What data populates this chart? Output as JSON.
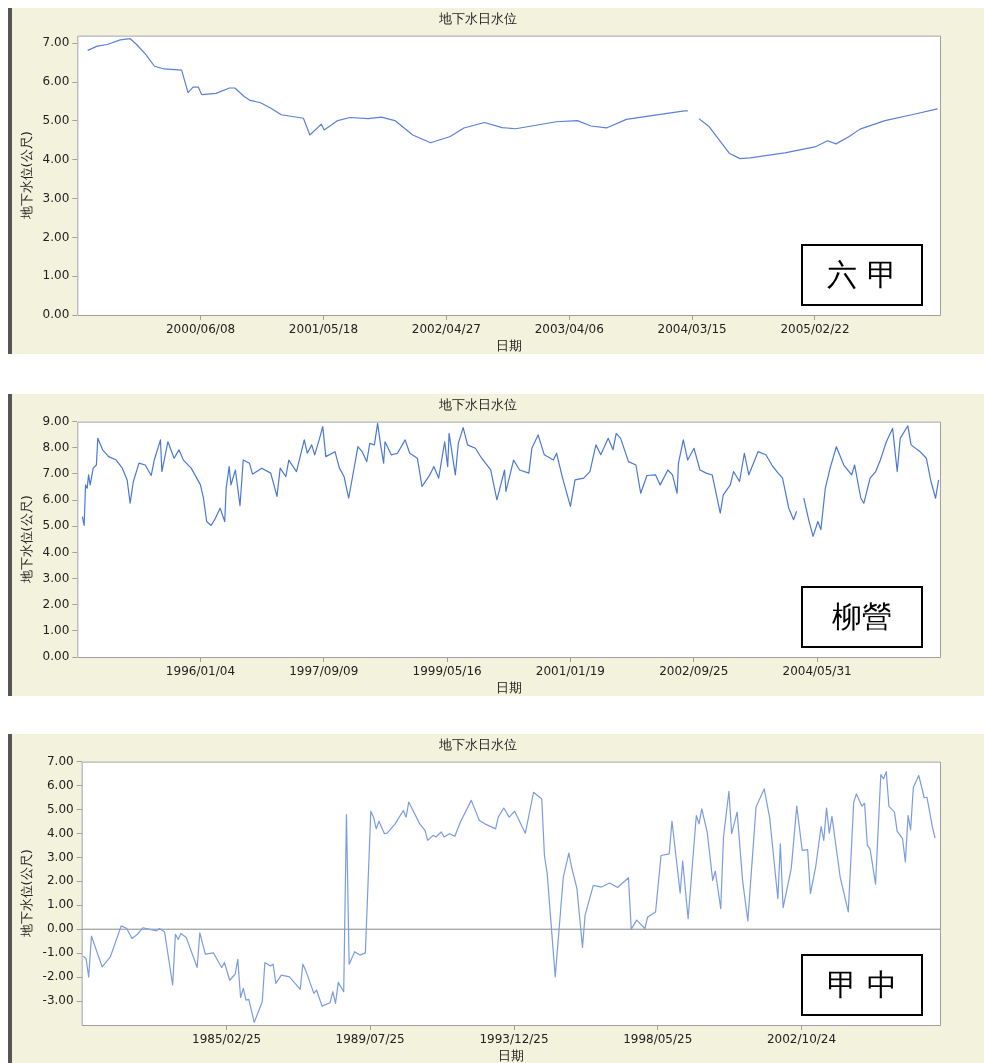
{
  "chart_data": [
    {
      "type": "line",
      "title": "地下水日水位",
      "xlabel": "日期",
      "ylabel": "地下水位(公尺)",
      "annotations": [
        "六 甲"
      ],
      "xlim": [
        "1999-06-29",
        "2006-02-07"
      ],
      "ylim": [
        0,
        7.2
      ],
      "xticks": [
        {
          "value": "2000-06-08",
          "label": "2000/06/08"
        },
        {
          "value": "2001-05-18",
          "label": "2001/05/18"
        },
        {
          "value": "2002-04-27",
          "label": "2002/04/27"
        },
        {
          "value": "2003-04-06",
          "label": "2003/04/06"
        },
        {
          "value": "2004-03-15",
          "label": "2004/03/15"
        },
        {
          "value": "2005-02-22",
          "label": "2005/02/22"
        }
      ],
      "yticks": [
        {
          "value": 0,
          "label": "0.00"
        },
        {
          "value": 1,
          "label": "1.00"
        },
        {
          "value": 2,
          "label": "2.00"
        },
        {
          "value": 3,
          "label": "3.00"
        },
        {
          "value": 4,
          "label": "4.00"
        },
        {
          "value": 5,
          "label": "5.00"
        },
        {
          "value": 6,
          "label": "6.00"
        },
        {
          "value": 7,
          "label": "7.00"
        }
      ],
      "series": [
        {
          "color": "#5b80d8",
          "x": [
            "1999-07-28",
            "1999-08-24",
            "1999-09-21",
            "1999-10-27",
            "1999-11-24",
            "1999-12-12",
            "2000-01-07",
            "2000-01-31",
            "2000-02-27",
            "2000-04-16",
            "2000-05-04",
            "2000-05-18",
            "2000-06-02",
            "2000-06-11",
            "2000-07-21",
            "2000-08-28",
            "2000-09-12",
            "2000-10-08",
            "2000-10-25",
            "2000-11-23",
            "2000-12-22",
            "2001-01-20",
            "2001-03-23",
            "2001-04-10",
            "2001-05-12",
            "2001-05-20",
            "2001-06-27",
            "2001-07-31",
            "2001-09-20",
            "2001-10-27",
            "2001-12-04",
            "2002-01-23",
            "2002-03-14",
            "2002-05-08",
            "2002-06-15",
            "2002-08-12",
            "2002-09-30",
            "2002-11-07",
            "2003-03-01",
            "2003-04-29",
            "2003-06-06",
            "2003-07-19",
            "2003-09-13",
            "2003-12-17",
            "2004-02-23",
            "2004-03-03",
            "2004-03-18",
            "2004-04-03",
            "2004-05-01",
            "2004-06-28",
            "2004-07-27",
            "2004-08-25",
            "2004-11-30",
            "2005-02-25",
            "2005-03-29",
            "2005-04-22",
            "2005-05-29",
            "2005-06-28",
            "2005-09-06",
            "2005-11-20",
            "2006-01-31"
          ],
          "values": [
            6.82,
            6.93,
            6.97,
            7.09,
            7.12,
            6.97,
            6.71,
            6.41,
            6.34,
            6.31,
            5.73,
            5.87,
            5.87,
            5.68,
            5.71,
            5.85,
            5.85,
            5.63,
            5.53,
            5.47,
            5.33,
            5.16,
            5.07,
            4.64,
            4.92,
            4.77,
            5.01,
            5.09,
            5.06,
            5.1,
            5.01,
            4.64,
            4.44,
            4.6,
            4.82,
            4.96,
            4.83,
            4.8,
            4.98,
            5.01,
            4.87,
            4.82,
            5.04,
            5.17,
            5.26,
            5.26,
            null,
            5.06,
            4.86,
            4.16,
            4.03,
            4.05,
            4.18,
            4.34,
            4.49,
            4.41,
            4.6,
            4.79,
            5.01,
            5.16,
            5.31
          ]
        }
      ]
    },
    {
      "type": "line",
      "title": "地下水日水位",
      "xlabel": "日期",
      "ylabel": "地下水位(公尺)",
      "annotations": [
        "柳營"
      ],
      "xlim": [
        "1994-05-01",
        "2006-02-02"
      ],
      "ylim": [
        0,
        9
      ],
      "xticks": [
        {
          "value": "1996-01-04",
          "label": "1996/01/04"
        },
        {
          "value": "1997-09-09",
          "label": "1997/09/09"
        },
        {
          "value": "1999-05-16",
          "label": "1999/05/16"
        },
        {
          "value": "2001-01-19",
          "label": "2001/01/19"
        },
        {
          "value": "2002-09-25",
          "label": "2002/09/25"
        },
        {
          "value": "2004-05-31",
          "label": "2004/05/31"
        }
      ],
      "yticks": [
        {
          "value": 0,
          "label": "0.00"
        },
        {
          "value": 1,
          "label": "1.00"
        },
        {
          "value": 2,
          "label": "2.00"
        },
        {
          "value": 3,
          "label": "3.00"
        },
        {
          "value": 4,
          "label": "4.00"
        },
        {
          "value": 5,
          "label": "5.00"
        },
        {
          "value": 6,
          "label": "6.00"
        },
        {
          "value": 7,
          "label": "7.00"
        },
        {
          "value": 8,
          "label": "8.00"
        },
        {
          "value": 9,
          "label": "9.00"
        }
      ],
      "series": [
        {
          "color": "#4a78d8",
          "x": [
            "1994-05-26",
            "1994-06-04",
            "1994-06-11",
            "1994-06-19",
            "1994-06-26",
            "1994-07-04",
            "1994-07-19",
            "1994-08-04",
            "1994-08-11",
            "1994-09-04",
            "1994-10-04",
            "1994-11-11",
            "1994-12-11",
            "1995-01-04",
            "1995-01-19",
            "1995-02-04",
            "1995-03-04",
            "1995-04-04",
            "1995-05-04",
            "1995-05-19",
            "1995-06-19",
            "1995-06-26",
            "1995-07-26",
            "1995-08-26",
            "1995-09-19",
            "1995-10-11",
            "1995-11-19",
            "1996-01-04",
            "1996-01-19",
            "1996-02-04",
            "1996-02-26",
            "1996-03-19",
            "1996-04-11",
            "1996-05-04",
            "1996-05-11",
            "1996-05-26",
            "1996-06-04",
            "1996-06-26",
            "1996-07-19",
            "1996-08-04",
            "1996-09-04",
            "1996-09-19",
            "1996-11-04",
            "1996-12-19",
            "1997-01-19",
            "1997-02-04",
            "1997-03-04",
            "1997-03-19",
            "1997-04-26",
            "1997-06-04",
            "1997-06-19",
            "1997-07-11",
            "1997-07-26",
            "1997-08-19",
            "1997-09-04",
            "1997-09-19",
            "1997-11-04",
            "1997-11-26",
            "1997-12-19",
            "1998-01-11",
            "1998-01-26",
            "1998-02-26",
            "1998-03-19",
            "1998-04-11",
            "1998-04-26",
            "1998-05-19",
            "1998-06-04",
            "1998-06-19",
            "1998-07-04",
            "1998-07-11",
            "1998-08-11",
            "1998-09-11",
            "1998-10-19",
            "1998-11-11",
            "1998-12-19",
            "1999-01-11",
            "1999-02-19",
            "1999-03-11",
            "1999-04-04",
            "1999-05-04",
            "1999-05-19",
            "1999-05-26",
            "1999-06-26",
            "1999-07-11",
            "1999-08-04",
            "1999-08-26",
            "1999-10-04",
            "1999-11-04",
            "1999-12-19",
            "2000-01-19",
            "2000-02-26",
            "2000-03-04",
            "2000-04-11",
            "2000-05-11",
            "2000-06-26",
            "2000-07-11",
            "2000-08-11",
            "2000-09-11",
            "2000-10-26",
            "2000-11-11",
            "2000-12-11",
            "2001-01-19",
            "2001-02-11",
            "2001-03-26",
            "2001-04-26",
            "2001-05-26",
            "2001-06-19",
            "2001-07-26",
            "2001-08-19",
            "2001-09-04",
            "2001-09-26",
            "2001-11-04",
            "2001-12-11",
            "2002-01-04",
            "2002-02-04",
            "2002-03-19",
            "2002-04-11",
            "2002-05-19",
            "2002-06-11",
            "2002-07-04",
            "2002-07-11",
            "2002-08-04",
            "2002-08-26",
            "2002-09-26",
            "2002-10-26",
            "2002-11-26",
            "2002-12-26",
            "2003-02-04",
            "2003-02-19",
            "2003-03-26",
            "2003-04-11",
            "2003-05-11",
            "2003-06-04",
            "2003-06-26",
            "2003-08-11",
            "2003-09-19",
            "2003-10-19",
            "2003-11-19",
            "2003-12-11",
            "2004-01-11",
            "2004-02-04",
            "2004-02-19",
            "2004-03-04",
            "2004-03-26",
            "2004-04-19",
            "2004-05-11",
            "2004-06-04",
            "2004-06-19",
            "2004-07-11",
            "2004-08-04",
            "2004-09-04",
            "2004-10-11",
            "2004-11-19",
            "2004-12-04",
            "2005-01-04",
            "2005-01-19",
            "2005-02-19",
            "2005-03-19",
            "2005-04-11",
            "2005-05-11",
            "2005-06-11",
            "2005-07-04",
            "2005-07-19",
            "2005-08-26",
            "2005-09-11",
            "2005-10-26",
            "2005-11-26",
            "2005-12-19",
            "2006-01-11",
            "2006-01-26"
          ],
          "values": [
            5.37,
            5.03,
            6.58,
            6.45,
            6.96,
            6.58,
            7.22,
            7.34,
            8.36,
            7.92,
            7.66,
            7.53,
            7.22,
            6.77,
            5.88,
            6.71,
            7.41,
            7.34,
            6.94,
            7.53,
            8.3,
            7.09,
            8.23,
            7.6,
            7.92,
            7.53,
            7.22,
            6.58,
            6.07,
            5.18,
            5.03,
            5.31,
            5.69,
            5.18,
            6.45,
            7.28,
            6.58,
            7.15,
            5.79,
            7.53,
            7.41,
            6.99,
            7.22,
            7.03,
            6.14,
            7.22,
            6.9,
            7.53,
            7.09,
            8.3,
            7.79,
            8.11,
            7.73,
            8.36,
            8.81,
            7.66,
            7.85,
            7.22,
            6.9,
            6.07,
            6.71,
            8.04,
            7.85,
            7.47,
            8.17,
            8.11,
            8.93,
            8.11,
            7.41,
            8.23,
            7.73,
            7.79,
            8.3,
            7.79,
            7.6,
            6.52,
            6.96,
            7.28,
            6.84,
            8.23,
            7.28,
            8.55,
            6.96,
            8.17,
            8.77,
            8.11,
            7.98,
            7.6,
            7.15,
            6.01,
            7.15,
            6.33,
            7.53,
            7.15,
            7.03,
            7.98,
            8.49,
            7.73,
            7.53,
            7.79,
            6.84,
            5.76,
            6.77,
            6.84,
            7.09,
            8.11,
            7.73,
            8.36,
            7.92,
            8.55,
            8.36,
            7.47,
            7.34,
            6.26,
            6.94,
            6.96,
            6.58,
            7.15,
            6.96,
            6.26,
            7.41,
            8.3,
            7.53,
            7.98,
            7.15,
            7.03,
            6.96,
            5.5,
            6.2,
            6.58,
            7.09,
            6.71,
            7.79,
            6.96,
            7.85,
            7.73,
            7.34,
            7.03,
            6.84,
            5.69,
            5.25,
            5.57,
            null,
            6.07,
            5.25,
            4.61,
            5.18,
            4.87,
            6.45,
            7.22,
            8.04,
            7.34,
            6.96,
            7.34,
            6.07,
            5.88,
            6.84,
            7.09,
            7.53,
            8.23,
            8.74,
            7.09,
            8.36,
            8.84,
            8.11,
            7.85,
            7.6,
            6.71,
            6.07,
            6.77
          ]
        }
      ]
    },
    {
      "type": "line",
      "title": "地下水日水位",
      "xlabel": "日期",
      "ylabel": "地下水位(公尺)",
      "annotations": [
        "甲 中"
      ],
      "xlim": [
        "1980-09-13",
        "2007-01-25"
      ],
      "ylim": [
        -4,
        7
      ],
      "xticks": [
        {
          "value": "1985-02-25",
          "label": "1985/02/25"
        },
        {
          "value": "1989-07-25",
          "label": "1989/07/25"
        },
        {
          "value": "1993-12-25",
          "label": "1993/12/25"
        },
        {
          "value": "1998-05-25",
          "label": "1998/05/25"
        },
        {
          "value": "2002-10-24",
          "label": "2002/10/24"
        }
      ],
      "yticks": [
        {
          "value": -3,
          "label": "-3.00"
        },
        {
          "value": -2,
          "label": "-2.00"
        },
        {
          "value": -1,
          "label": "-1.00"
        },
        {
          "value": 0,
          "label": "0.00"
        },
        {
          "value": 1,
          "label": "1.00"
        },
        {
          "value": 2,
          "label": "2.00"
        },
        {
          "value": 3,
          "label": "3.00"
        },
        {
          "value": 4,
          "label": "4.00"
        },
        {
          "value": 5,
          "label": "5.00"
        },
        {
          "value": 6,
          "label": "6.00"
        },
        {
          "value": 7,
          "label": "7.00"
        }
      ],
      "ref_lines": [
        {
          "axis": "y",
          "value": 0,
          "color": "#888888"
        }
      ],
      "series": [
        {
          "color": "#7b9ce2",
          "x": [
            "1980-10",
            "1980-11",
            "1980-12",
            "1981-01",
            "1981-05",
            "1981-08",
            "1981-12",
            "1982-02",
            "1982-04",
            "1982-06",
            "1982-08",
            "1983-01",
            "1983-02",
            "1983-04",
            "1983-07",
            "1983-08",
            "1983-09",
            "1983-10",
            "1983-12",
            "1984-04",
            "1984-05",
            "1984-07",
            "1984-10",
            "1985-01",
            "1985-02",
            "1985-04",
            "1985-06",
            "1985-07",
            "1985-08",
            "1985-09",
            "1985-10",
            "1985-11",
            "1986-01",
            "1986-04",
            "1986-05",
            "1986-07",
            "1986-08",
            "1986-09",
            "1986-11",
            "1987-02",
            "1987-06",
            "1987-07",
            "1987-08",
            "1987-11",
            "1987-12",
            "1988-02",
            "1988-05",
            "1988-06",
            "1988-07",
            "1988-08",
            "1988-10",
            "1988-11",
            "1988-12",
            "1989-02",
            "1989-04",
            "1989-06",
            "1989-08",
            "1989-09",
            "1989-10",
            "1989-11",
            "1990-01",
            "1990-02",
            "1990-05",
            "1990-08",
            "1990-09",
            "1990-10",
            "1991-02",
            "1991-04",
            "1991-05",
            "1991-07",
            "1991-08",
            "1991-10",
            "1991-11",
            "1992-01",
            "1992-03",
            "1992-05",
            "1992-09",
            "1992-12",
            "1993-02",
            "1993-06",
            "1993-07",
            "1993-09",
            "1993-11",
            "1994-01",
            "1994-05",
            "1994-08",
            "1994-11",
            "1994-12",
            "1995-01",
            "1995-04",
            "1995-07",
            "1995-09",
            "1995-10",
            "1995-12",
            "1996-02",
            "1996-03",
            "1996-06",
            "1996-09",
            "1996-12",
            "1997-03",
            "1997-07",
            "1997-08",
            "1997-10",
            "1998-01",
            "1998-02",
            "1998-05",
            "1998-07",
            "1998-10",
            "1998-11",
            "1999-02",
            "1999-03",
            "1999-05",
            "1999-08",
            "1999-09",
            "1999-10",
            "1999-12",
            "2000-02",
            "2000-03",
            "2000-05",
            "2000-06",
            "2000-08",
            "2000-09",
            "2000-11",
            "2001-01",
            "2001-03",
            "2001-06",
            "2001-09",
            "2001-11",
            "2002-02",
            "2002-03",
            "2002-04",
            "2002-07",
            "2002-09",
            "2002-11",
            "2003-01",
            "2003-02",
            "2003-04",
            "2003-06",
            "2003-07",
            "2003-08",
            "2003-09",
            "2003-10",
            "2004-01",
            "2004-04",
            "2004-06",
            "2004-07",
            "2004-09",
            "2004-10",
            "2004-11",
            "2004-12",
            "2005-02",
            "2005-04",
            "2005-05",
            "2005-06",
            "2005-07",
            "2005-09",
            "2005-10",
            "2005-12",
            "2006-01",
            "2006-02",
            "2006-03",
            "2006-04",
            "2006-06",
            "2006-08",
            "2006-09",
            "2006-11",
            "2006-12"
          ],
          "values": [
            -1.13,
            -1.22,
            -1.99,
            -0.29,
            -1.57,
            -1.15,
            0.14,
            0.03,
            -0.39,
            -0.21,
            0.06,
            -0.07,
            0.03,
            -0.11,
            -2.33,
            -0.21,
            -0.43,
            -0.18,
            -0.35,
            -1.6,
            -0.15,
            -1.04,
            -0.99,
            -1.6,
            -1.39,
            -2.13,
            -1.88,
            -1.26,
            -2.85,
            -2.47,
            -2.96,
            -2.93,
            -3.89,
            -3.03,
            -1.39,
            -1.54,
            -1.46,
            -2.26,
            -1.92,
            -1.99,
            -2.51,
            -1.46,
            -1.71,
            -2.68,
            -2.54,
            -3.21,
            -3.07,
            -2.61,
            -3.1,
            -2.22,
            -2.61,
            4.79,
            -1.46,
            -0.94,
            -1.08,
            -0.99,
            4.93,
            4.68,
            4.19,
            4.51,
            3.99,
            4.01,
            4.4,
            4.96,
            4.68,
            5.31,
            4.4,
            4.13,
            3.71,
            3.92,
            3.85,
            4.06,
            3.85,
            3.99,
            3.88,
            4.47,
            5.38,
            4.54,
            4.4,
            4.19,
            4.68,
            5.06,
            4.68,
            4.93,
            4.01,
            5.72,
            5.44,
            3.08,
            2.32,
            -1.99,
            2.18,
            3.18,
            2.6,
            1.69,
            -0.76,
            0.58,
            1.83,
            1.76,
            1.93,
            1.74,
            2.15,
            0,
            0.38,
            0.03,
            0.51,
            0.72,
            3.08,
            3.15,
            4.51,
            1.51,
            2.85,
            0.44,
            4.75,
            4.4,
            5.03,
            4.06,
            2.04,
            2.43,
            0.86,
            3.85,
            5.76,
            3.99,
            4.89,
            2.04,
            0.35,
            5.1,
            5.86,
            4.65,
            1.28,
            3.57,
            0.9,
            2.53,
            5.14,
            3.29,
            3.32,
            1.49,
            2.6,
            4.29,
            3.71,
            5.06,
            4.01,
            4.71,
            2.18,
            0.72,
            5.31,
            5.65,
            5.14,
            5.26,
            3.5,
            3.36,
            1.88,
            6.46,
            6.28,
            6.58,
            5.13,
            4.89,
            4.1,
            3.78,
            2.81,
            4.75,
            4.15,
            5.93,
            6.42,
            5.49,
            5.51,
            4.26,
            3.81
          ]
        }
      ]
    }
  ]
}
